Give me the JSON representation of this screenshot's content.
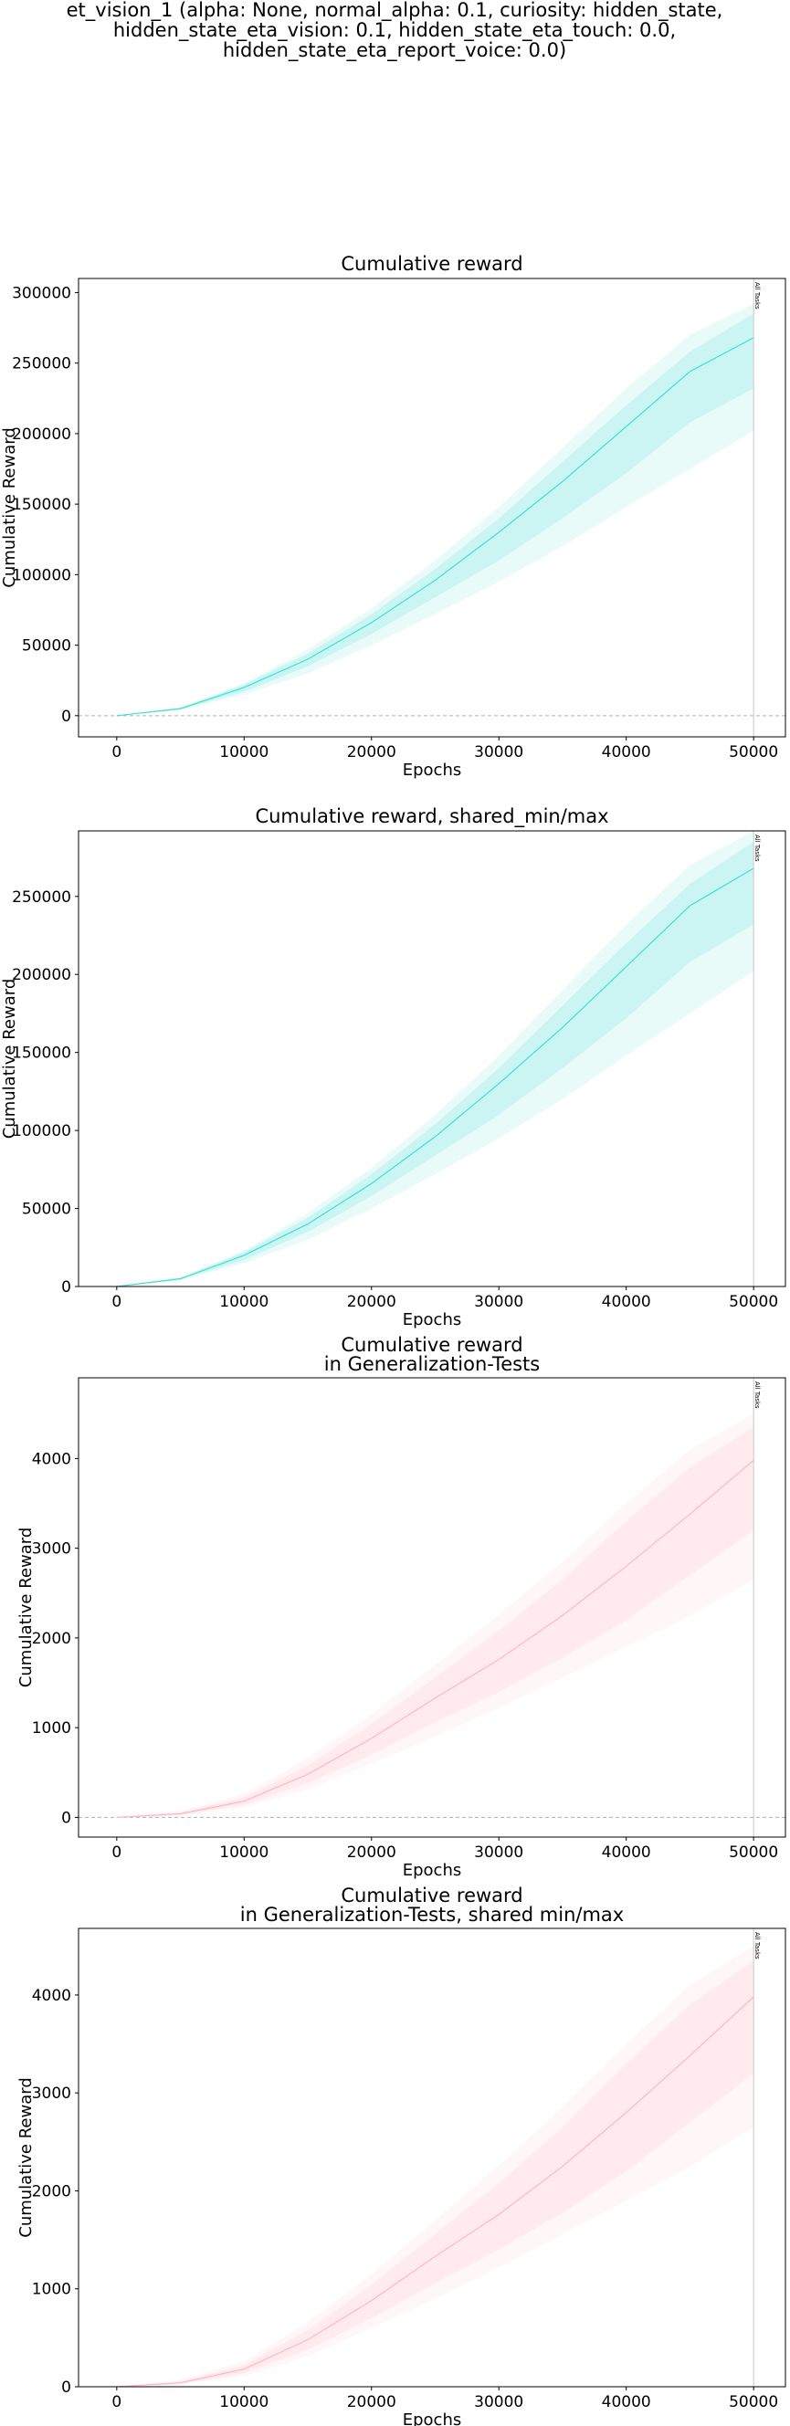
{
  "figure": {
    "title_lines": [
      "et_vision_1 (alpha: None, normal_alpha: 0.1, curiosity: hidden_state,",
      "hidden_state_eta_vision: 0.1, hidden_state_eta_touch: 0.0,",
      "hidden_state_eta_report_voice: 0.0)"
    ]
  },
  "chart_data": [
    {
      "type": "line",
      "title_lines": [
        "Cumulative reward"
      ],
      "xlabel": "Epochs",
      "ylabel": "Cumulative Reward",
      "xlim": [
        -3000,
        52500
      ],
      "ylim": [
        -15000,
        310000
      ],
      "xticks": [
        0,
        10000,
        20000,
        30000,
        40000,
        50000
      ],
      "yticks": [
        0,
        50000,
        100000,
        150000,
        200000,
        250000,
        300000
      ],
      "zero_line": true,
      "vline": {
        "x": 50000,
        "label": "All Tasks"
      },
      "color": "#40e0d0",
      "series": [
        {
          "x": [
            0,
            5000,
            10000,
            15000,
            20000,
            25000,
            30000,
            35000,
            40000,
            45000,
            50000
          ],
          "y": [
            0,
            5000,
            20000,
            40000,
            66000,
            96000,
            130000,
            166000,
            205000,
            244000,
            268000
          ],
          "inner_low": [
            0,
            4500,
            17000,
            35000,
            58000,
            84000,
            110000,
            140000,
            172000,
            208000,
            232000
          ],
          "inner_high": [
            0,
            5500,
            22000,
            44000,
            72000,
            104000,
            140000,
            180000,
            220000,
            258000,
            285000
          ],
          "outer_low": [
            0,
            4000,
            15000,
            30000,
            50000,
            72000,
            95000,
            120000,
            148000,
            175000,
            202000
          ],
          "outer_high": [
            0,
            6000,
            23000,
            47000,
            76000,
            110000,
            148000,
            190000,
            232000,
            270000,
            292000
          ]
        }
      ]
    },
    {
      "type": "line",
      "title_lines": [
        "Cumulative reward, shared_min/max"
      ],
      "xlabel": "Epochs",
      "ylabel": "Cumulative Reward",
      "xlim": [
        -3000,
        52500
      ],
      "ylim": [
        0,
        292000
      ],
      "xticks": [
        0,
        10000,
        20000,
        30000,
        40000,
        50000
      ],
      "yticks": [
        0,
        50000,
        100000,
        150000,
        200000,
        250000
      ],
      "zero_line": false,
      "vline": {
        "x": 50000,
        "label": "All Tasks"
      },
      "color": "#40e0d0",
      "series": [
        {
          "x": [
            0,
            5000,
            10000,
            15000,
            20000,
            25000,
            30000,
            35000,
            40000,
            45000,
            50000
          ],
          "y": [
            0,
            5000,
            20000,
            40000,
            66000,
            96000,
            130000,
            166000,
            205000,
            244000,
            268000
          ],
          "inner_low": [
            0,
            4500,
            17000,
            35000,
            58000,
            84000,
            110000,
            140000,
            172000,
            208000,
            232000
          ],
          "inner_high": [
            0,
            5500,
            22000,
            44000,
            72000,
            104000,
            140000,
            180000,
            220000,
            258000,
            285000
          ],
          "outer_low": [
            0,
            4000,
            15000,
            30000,
            50000,
            72000,
            95000,
            120000,
            148000,
            175000,
            202000
          ],
          "outer_high": [
            0,
            6000,
            23000,
            47000,
            76000,
            110000,
            148000,
            190000,
            232000,
            270000,
            292000
          ]
        }
      ]
    },
    {
      "type": "line",
      "title_lines": [
        "Cumulative reward",
        "in Generalization-Tests"
      ],
      "xlabel": "Epochs",
      "ylabel": "Cumulative Reward",
      "xlim": [
        -3000,
        52500
      ],
      "ylim": [
        -220,
        4900
      ],
      "xticks": [
        0,
        10000,
        20000,
        30000,
        40000,
        50000
      ],
      "yticks": [
        0,
        1000,
        2000,
        3000,
        4000
      ],
      "zero_line": true,
      "vline": {
        "x": 50000,
        "label": "All Tasks"
      },
      "color": "#ffb6c1",
      "series": [
        {
          "x": [
            0,
            5000,
            10000,
            15000,
            20000,
            25000,
            30000,
            35000,
            40000,
            45000,
            50000
          ],
          "y": [
            0,
            40,
            180,
            480,
            880,
            1330,
            1760,
            2250,
            2800,
            3380,
            3980
          ],
          "inner_low": [
            0,
            30,
            140,
            380,
            700,
            1060,
            1400,
            1780,
            2200,
            2700,
            3200
          ],
          "inner_high": [
            0,
            55,
            220,
            580,
            1040,
            1560,
            2080,
            2650,
            3300,
            3900,
            4350
          ],
          "outer_low": [
            0,
            20,
            110,
            310,
            600,
            900,
            1220,
            1560,
            1900,
            2250,
            2650
          ],
          "outer_high": [
            0,
            70,
            260,
            660,
            1150,
            1700,
            2260,
            2850,
            3500,
            4100,
            4500
          ]
        }
      ]
    },
    {
      "type": "line",
      "title_lines": [
        "Cumulative reward",
        "in Generalization-Tests, shared min/max"
      ],
      "xlabel": "Epochs",
      "ylabel": "Cumulative Reward",
      "xlim": [
        -3000,
        52500
      ],
      "ylim": [
        0,
        4680
      ],
      "xticks": [
        0,
        10000,
        20000,
        30000,
        40000,
        50000
      ],
      "yticks": [
        0,
        1000,
        2000,
        3000,
        4000
      ],
      "zero_line": false,
      "vline": {
        "x": 50000,
        "label": "All Tasks"
      },
      "color": "#ffb6c1",
      "series": [
        {
          "x": [
            0,
            5000,
            10000,
            15000,
            20000,
            25000,
            30000,
            35000,
            40000,
            45000,
            50000
          ],
          "y": [
            0,
            40,
            180,
            480,
            880,
            1330,
            1760,
            2250,
            2800,
            3380,
            3980
          ],
          "inner_low": [
            0,
            30,
            140,
            380,
            700,
            1060,
            1400,
            1780,
            2200,
            2700,
            3200
          ],
          "inner_high": [
            0,
            55,
            220,
            580,
            1040,
            1560,
            2080,
            2650,
            3300,
            3900,
            4350
          ],
          "outer_low": [
            0,
            20,
            110,
            310,
            600,
            900,
            1220,
            1560,
            1900,
            2250,
            2650
          ],
          "outer_high": [
            0,
            70,
            260,
            660,
            1150,
            1700,
            2260,
            2850,
            3500,
            4100,
            4500
          ]
        }
      ]
    }
  ]
}
